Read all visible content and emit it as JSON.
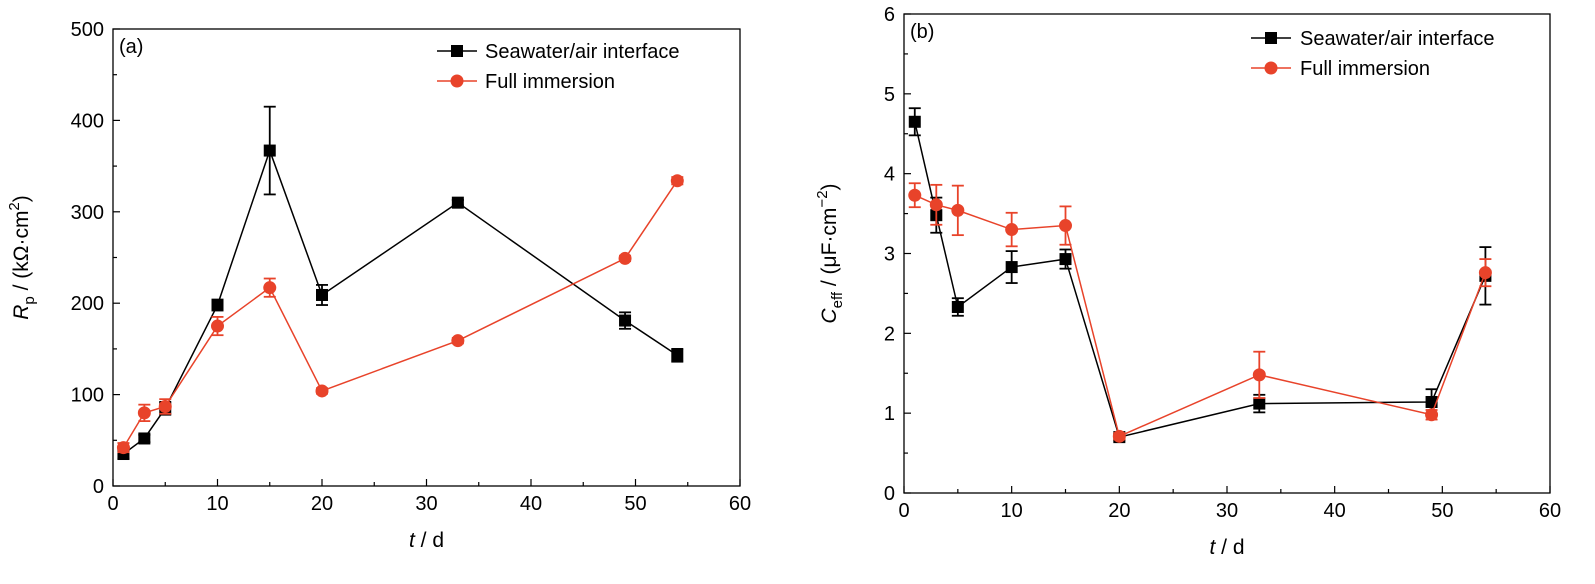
{
  "chart_data": [
    {
      "type": "line",
      "panel_label": "(a)",
      "x_axis": {
        "var": "t",
        "unit": " / d",
        "range": [
          0,
          60
        ],
        "ticks": [
          0,
          10,
          20,
          30,
          40,
          50,
          60
        ]
      },
      "y_axis": {
        "var": "R",
        "sub": "p",
        "unit_pre": " / (kΩ·cm",
        "sup": "2",
        "unit_post": ")",
        "range": [
          0,
          500
        ],
        "ticks": [
          0,
          100,
          200,
          300,
          400,
          500
        ]
      },
      "legend_position": "top-right",
      "grid": false,
      "series": [
        {
          "name": "Seawater/air interface",
          "color": "#000000",
          "marker": "square",
          "x": [
            1,
            3,
            5,
            10,
            15,
            20,
            33,
            49,
            54
          ],
          "y": [
            35,
            52,
            85,
            198,
            367,
            209,
            310,
            181,
            143
          ],
          "err": [
            5,
            4,
            7,
            6,
            48,
            11,
            3,
            9,
            7
          ]
        },
        {
          "name": "Full immersion",
          "color": "#e8432a",
          "marker": "circle",
          "x": [
            1,
            3,
            5,
            10,
            15,
            20,
            33,
            49,
            54
          ],
          "y": [
            42,
            80,
            87,
            175,
            217,
            104,
            159,
            249,
            334
          ],
          "err": [
            5,
            9,
            8,
            10,
            10,
            3,
            3,
            3,
            4
          ]
        }
      ]
    },
    {
      "type": "line",
      "panel_label": "(b)",
      "x_axis": {
        "var": "t",
        "unit": " / d",
        "range": [
          0,
          60
        ],
        "ticks": [
          0,
          10,
          20,
          30,
          40,
          50,
          60
        ]
      },
      "y_axis": {
        "var": "C",
        "sub": "eff",
        "unit_pre": " / (μF·cm",
        "sup": "−2",
        "unit_post": ")",
        "range": [
          0,
          6
        ],
        "ticks": [
          0,
          1,
          2,
          3,
          4,
          5,
          6
        ]
      },
      "legend_position": "top-right",
      "grid": false,
      "series": [
        {
          "name": "Seawater/air interface",
          "color": "#000000",
          "marker": "square",
          "x": [
            1,
            3,
            5,
            10,
            15,
            20,
            33,
            49,
            54
          ],
          "y": [
            4.65,
            3.48,
            2.33,
            2.83,
            2.93,
            0.7,
            1.12,
            1.14,
            2.72
          ],
          "err": [
            0.17,
            0.22,
            0.11,
            0.2,
            0.12,
            0.04,
            0.11,
            0.16,
            0.36
          ]
        },
        {
          "name": "Full immersion",
          "color": "#e8432a",
          "marker": "circle",
          "x": [
            1,
            3,
            5,
            10,
            15,
            20,
            33,
            49,
            54
          ],
          "y": [
            3.73,
            3.61,
            3.54,
            3.3,
            3.35,
            0.71,
            1.48,
            0.98,
            2.76
          ],
          "err": [
            0.15,
            0.25,
            0.31,
            0.21,
            0.24,
            0.04,
            0.29,
            0.06,
            0.17
          ]
        }
      ]
    }
  ]
}
